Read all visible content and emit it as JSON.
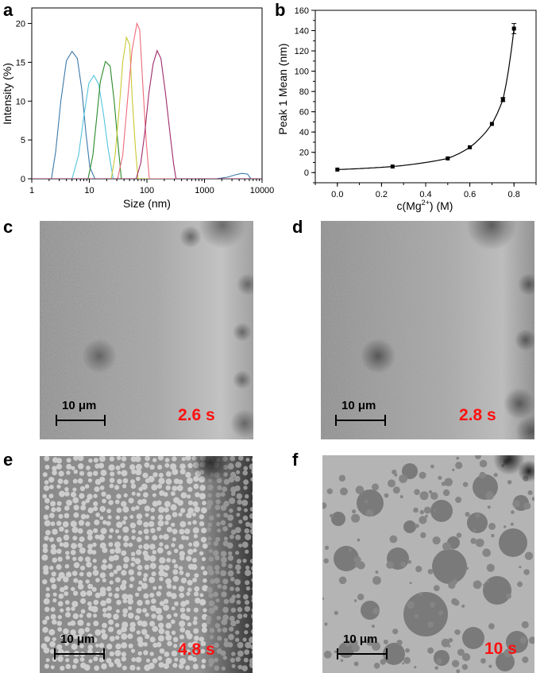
{
  "panels": {
    "a": {
      "letter": "a"
    },
    "b": {
      "letter": "b"
    },
    "c": {
      "letter": "c",
      "scale_label": "10 μm",
      "time_label": "2.6 s"
    },
    "d": {
      "letter": "d",
      "scale_label": "10 μm",
      "time_label": "2.8 s"
    },
    "e": {
      "letter": "e",
      "scale_label": "10 μm",
      "time_label": "4.8 s"
    },
    "f": {
      "letter": "f",
      "scale_label": "10 μm",
      "time_label": "10 s"
    }
  },
  "chart_data": [
    {
      "id": "a",
      "type": "line",
      "xlabel": "Size (nm)",
      "ylabel": "Intensity (%)",
      "xscale": "log",
      "xlim": [
        1,
        10000
      ],
      "ylim": [
        0,
        22
      ],
      "x_ticks": [
        1,
        10,
        100,
        1000,
        10000
      ],
      "x_tick_labels": [
        "1",
        "10",
        "100",
        "1000",
        "10000"
      ],
      "y_ticks": [
        0,
        5,
        10,
        15,
        20
      ],
      "y_tick_labels": [
        "0",
        "5",
        "10",
        "15",
        "20"
      ],
      "series": [
        {
          "color": "#3b78a8",
          "x": [
            1,
            2.2,
            2.6,
            3.2,
            4.0,
            5.0,
            6.2,
            7.4,
            8.7,
            10.2,
            12.5,
            10000
          ],
          "y": [
            0,
            0,
            3.5,
            10,
            15.2,
            16.4,
            15.5,
            11.5,
            6,
            1.5,
            0,
            0
          ]
        },
        {
          "color": "#3b78a8",
          "x": [
            1,
            1600,
            2500,
            3400,
            4400,
            5600,
            6400,
            10000
          ],
          "y": [
            0,
            0,
            0.2,
            0.5,
            0.7,
            0.6,
            0,
            0
          ]
        },
        {
          "color": "#54c4dc",
          "x": [
            1,
            5.0,
            6.5,
            8.0,
            9.8,
            12.0,
            14.5,
            17.5,
            21,
            26,
            10000
          ],
          "y": [
            0,
            0,
            3,
            8,
            12.3,
            13.3,
            12.2,
            8.5,
            4,
            0,
            0
          ]
        },
        {
          "color": "#2a8a2a",
          "x": [
            1,
            9.5,
            11.5,
            13.5,
            15.5,
            19,
            23,
            27,
            31,
            36,
            10000
          ],
          "y": [
            0,
            0,
            3,
            8,
            12.5,
            15.1,
            14.5,
            10,
            5,
            0,
            0
          ]
        },
        {
          "color": "#c8c832",
          "x": [
            1,
            24,
            28,
            33,
            38,
            44,
            50,
            56,
            63,
            70,
            10000
          ],
          "y": [
            0,
            0,
            3,
            9,
            15,
            18.2,
            17.3,
            10,
            4,
            0,
            0
          ]
        },
        {
          "color": "#ee6a7a",
          "x": [
            1,
            31,
            38,
            46,
            55,
            67,
            75,
            85,
            97,
            110,
            10000
          ],
          "y": [
            0,
            0,
            3,
            10,
            16.5,
            20,
            19.2,
            12,
            5,
            0,
            0
          ]
        },
        {
          "color": "#9e2a6a",
          "x": [
            1,
            65,
            78,
            92,
            108,
            128,
            150,
            175,
            210,
            250,
            290,
            320,
            10000
          ],
          "y": [
            0,
            0,
            2,
            6,
            11,
            14.8,
            16.5,
            15.5,
            11,
            6,
            2,
            0,
            0
          ]
        }
      ]
    },
    {
      "id": "b",
      "type": "scatter",
      "xlabel": "c(Mg²⁺) (M)",
      "ylabel": "Peak 1 Mean (nm)",
      "xlim": [
        -0.1,
        0.9
      ],
      "ylim": [
        -10,
        160
      ],
      "x_ticks": [
        0.0,
        0.2,
        0.4,
        0.6,
        0.8
      ],
      "x_tick_labels": [
        "0.0",
        "0.2",
        "0.4",
        "0.6",
        "0.8"
      ],
      "y_ticks": [
        0,
        20,
        40,
        60,
        80,
        100,
        120,
        140,
        160
      ],
      "y_tick_labels": [
        "0",
        "20",
        "40",
        "60",
        "80",
        "100",
        "120",
        "140",
        "160"
      ],
      "points": {
        "x": [
          0.0,
          0.25,
          0.5,
          0.6,
          0.7,
          0.75,
          0.8
        ],
        "y": [
          3,
          6,
          14,
          25,
          48,
          72,
          142
        ],
        "yerr": [
          0,
          0,
          0,
          0,
          0,
          2,
          5
        ]
      },
      "fit_line": true
    }
  ]
}
